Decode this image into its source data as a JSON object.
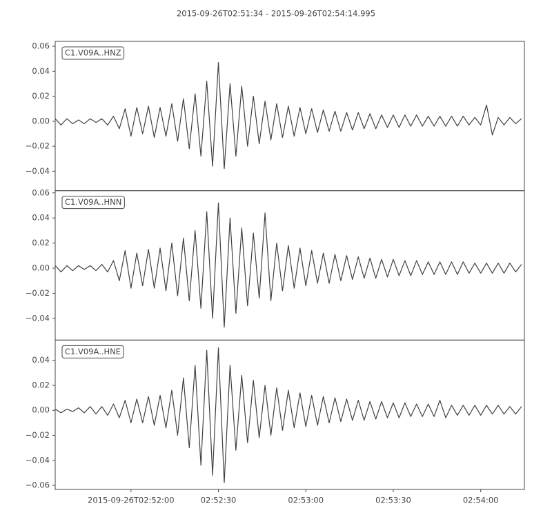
{
  "chart_data": {
    "type": "line",
    "title": "2015-09-26T02:51:34  -  2015-09-26T02:54:14.995",
    "color": "#404040",
    "x": [
      0,
      2,
      4,
      6,
      8,
      10,
      12,
      14,
      16,
      18,
      20,
      22,
      24,
      26,
      28,
      30,
      32,
      34,
      36,
      38,
      40,
      42,
      44,
      46,
      48,
      50,
      52,
      54,
      56,
      58,
      60,
      62,
      64,
      66,
      68,
      70,
      72,
      74,
      76,
      78,
      80,
      82,
      84,
      86,
      88,
      90,
      92,
      94,
      96,
      98,
      100,
      102,
      104,
      106,
      108,
      110,
      112,
      114,
      116,
      118,
      120,
      122,
      124,
      126,
      128,
      130,
      132,
      134,
      136,
      138,
      140,
      142,
      144,
      146,
      148,
      150,
      152,
      154,
      156,
      158,
      160
    ],
    "xlim": [
      0,
      160.995
    ],
    "xticks": [
      {
        "value": 26,
        "label": "2015-09-26T02:52:00"
      },
      {
        "value": 56,
        "label": "02:52:30"
      },
      {
        "value": 86,
        "label": "02:53:00"
      },
      {
        "value": 116,
        "label": "02:53:30"
      },
      {
        "value": 146,
        "label": "02:54:00"
      }
    ],
    "series": [
      {
        "name": "C1.V09A..HNZ",
        "ylim": [
          -0.0556,
          0.0639
        ],
        "yticks": [
          0.06,
          0.04,
          0.02,
          {
            "value": 0,
            "label": "0.00"
          },
          {
            "value": -0.02,
            "label": "−0.02"
          },
          {
            "value": -0.04,
            "label": "−0.04"
          }
        ],
        "values": [
          0.002,
          -0.003,
          0.002,
          -0.002,
          0.001,
          -0.002,
          0.002,
          -0.001,
          0.002,
          -0.003,
          0.004,
          -0.006,
          0.01,
          -0.012,
          0.011,
          -0.01,
          0.012,
          -0.013,
          0.011,
          -0.012,
          0.014,
          -0.016,
          0.018,
          -0.022,
          0.022,
          -0.028,
          0.032,
          -0.036,
          0.047,
          -0.038,
          0.03,
          -0.028,
          0.028,
          -0.02,
          0.02,
          -0.018,
          0.016,
          -0.015,
          0.014,
          -0.013,
          0.012,
          -0.012,
          0.011,
          -0.01,
          0.01,
          -0.009,
          0.009,
          -0.008,
          0.008,
          -0.008,
          0.007,
          -0.007,
          0.007,
          -0.006,
          0.006,
          -0.006,
          0.005,
          -0.005,
          0.005,
          -0.005,
          0.005,
          -0.004,
          0.005,
          -0.004,
          0.004,
          -0.004,
          0.004,
          -0.004,
          0.004,
          -0.004,
          0.004,
          -0.003,
          0.003,
          -0.003,
          0.013,
          -0.011,
          0.003,
          -0.003,
          0.003,
          -0.002,
          0.002
        ]
      },
      {
        "name": "C1.V09A..HNN",
        "ylim": [
          -0.0573,
          0.0617
        ],
        "yticks": [
          0.06,
          0.04,
          0.02,
          {
            "value": 0,
            "label": "0.00"
          },
          {
            "value": -0.02,
            "label": "−0.02"
          },
          {
            "value": -0.04,
            "label": "−0.04"
          }
        ],
        "values": [
          0.002,
          -0.003,
          0.002,
          -0.002,
          0.002,
          -0.001,
          0.002,
          -0.002,
          0.003,
          -0.003,
          0.006,
          -0.01,
          0.014,
          -0.016,
          0.012,
          -0.014,
          0.015,
          -0.016,
          0.016,
          -0.018,
          0.02,
          -0.022,
          0.024,
          -0.026,
          0.03,
          -0.032,
          0.045,
          -0.04,
          0.052,
          -0.047,
          0.04,
          -0.036,
          0.032,
          -0.03,
          0.028,
          -0.024,
          0.044,
          -0.026,
          0.02,
          -0.018,
          0.018,
          -0.016,
          0.016,
          -0.014,
          0.014,
          -0.012,
          0.012,
          -0.012,
          0.011,
          -0.01,
          0.01,
          -0.009,
          0.009,
          -0.008,
          0.008,
          -0.008,
          0.007,
          -0.007,
          0.007,
          -0.006,
          0.006,
          -0.006,
          0.006,
          -0.005,
          0.005,
          -0.005,
          0.005,
          -0.005,
          0.005,
          -0.005,
          0.005,
          -0.004,
          0.004,
          -0.004,
          0.004,
          -0.004,
          0.004,
          -0.004,
          0.004,
          -0.003,
          0.003
        ]
      },
      {
        "name": "C1.V09A..HNE",
        "ylim": [
          -0.0633,
          0.0562
        ],
        "yticks": [
          0.04,
          0.02,
          {
            "value": 0,
            "label": "0.00"
          },
          {
            "value": -0.02,
            "label": "−0.02"
          },
          {
            "value": -0.04,
            "label": "−0.04"
          },
          {
            "value": -0.06,
            "label": "−0.06"
          }
        ],
        "values": [
          0.001,
          -0.002,
          0.001,
          -0.001,
          0.002,
          -0.002,
          0.003,
          -0.003,
          0.003,
          -0.004,
          0.005,
          -0.006,
          0.008,
          -0.01,
          0.009,
          -0.01,
          0.011,
          -0.012,
          0.012,
          -0.014,
          0.016,
          -0.02,
          0.026,
          -0.03,
          0.036,
          -0.044,
          0.048,
          -0.052,
          0.05,
          -0.058,
          0.036,
          -0.032,
          0.028,
          -0.026,
          0.024,
          -0.022,
          0.02,
          -0.02,
          0.018,
          -0.016,
          0.016,
          -0.014,
          0.014,
          -0.013,
          0.012,
          -0.012,
          0.011,
          -0.01,
          0.01,
          -0.009,
          0.009,
          -0.008,
          0.008,
          -0.008,
          0.007,
          -0.007,
          0.007,
          -0.006,
          0.006,
          -0.006,
          0.006,
          -0.005,
          0.005,
          -0.005,
          0.005,
          -0.005,
          0.008,
          -0.006,
          0.004,
          -0.004,
          0.004,
          -0.004,
          0.004,
          -0.004,
          0.004,
          -0.003,
          0.004,
          -0.003,
          0.003,
          -0.003,
          0.003
        ]
      }
    ]
  }
}
